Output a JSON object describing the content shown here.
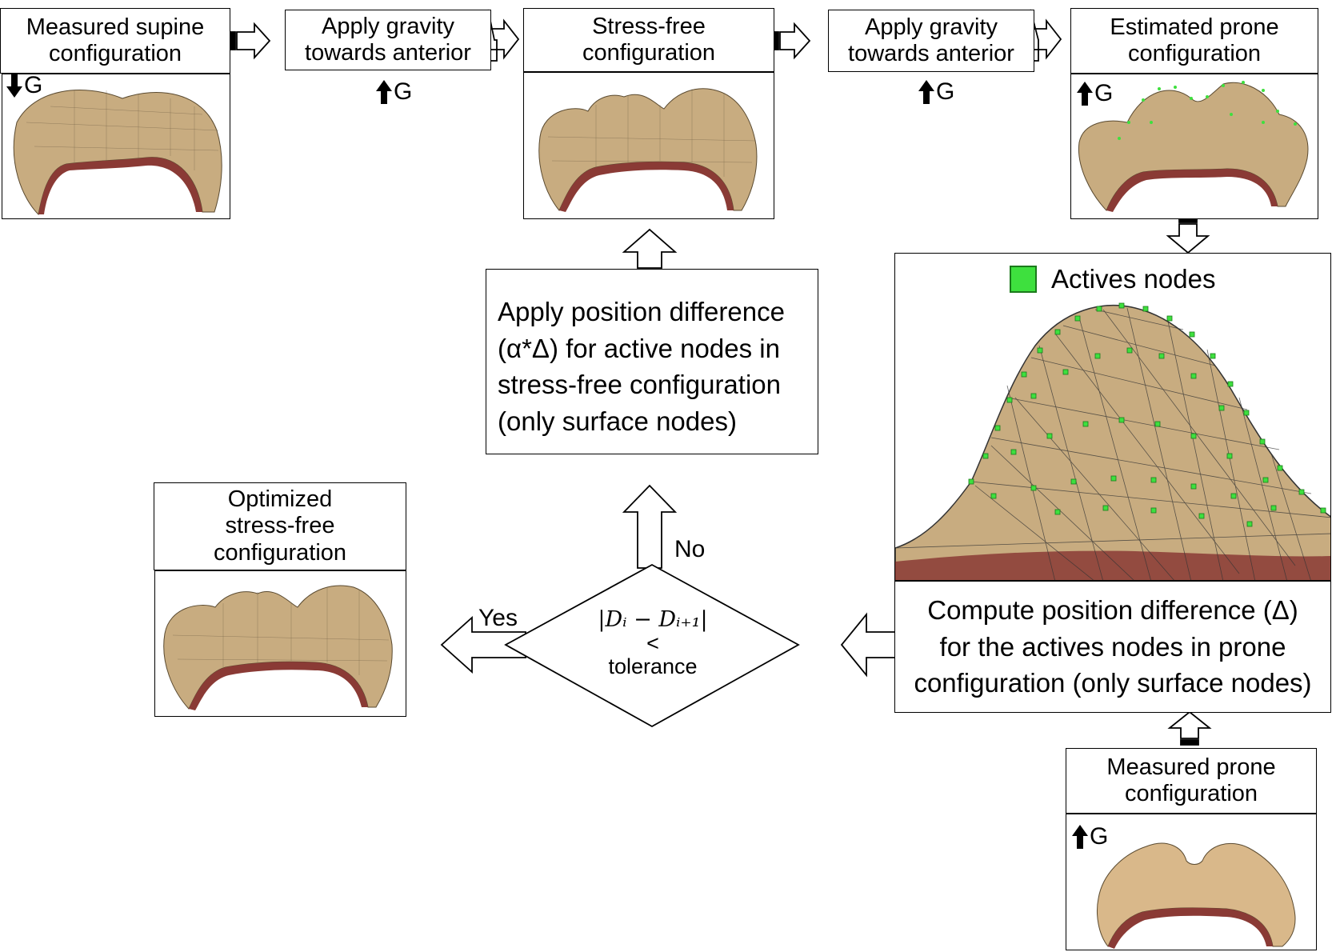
{
  "boxes": {
    "measured_supine": [
      "Measured supine",
      "configuration"
    ],
    "apply_gravity_1": [
      "Apply gravity",
      "towards anterior"
    ],
    "stress_free": [
      "Stress-free",
      "configuration"
    ],
    "apply_gravity_2": [
      "Apply gravity",
      "towards anterior"
    ],
    "estimated_prone": [
      "Estimated prone",
      "configuration"
    ],
    "apply_difference": [
      "Apply position difference",
      "(α*Δ) for active nodes in",
      "stress-free configuration",
      "(only surface nodes)"
    ],
    "optimized": [
      "Optimized",
      "stress-free",
      "configuration"
    ],
    "compute_difference": [
      "Compute position difference (Δ)",
      "for the actives nodes in prone",
      "configuration (only surface nodes)"
    ],
    "measured_prone": [
      "Measured prone",
      "configuration"
    ]
  },
  "gravity_label": "G",
  "legend_label": "Actives nodes",
  "decision": {
    "expression": "|Dᵢ − Dᵢ₊₁|",
    "operator": "<",
    "label": "tolerance"
  },
  "branch_labels": {
    "yes": "Yes",
    "no": "No"
  },
  "colors": {
    "mesh_fill": "#c8ac80",
    "mesh_inner": "#8a3a35",
    "active_node": "#3ee03e",
    "prone_fill": "#d9b88a"
  }
}
